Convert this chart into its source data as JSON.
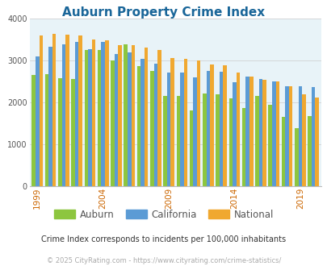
{
  "title": "Auburn Property Crime Index",
  "title_color": "#1a6699",
  "subtitle": "Crime Index corresponds to incidents per 100,000 inhabitants",
  "footer": "© 2025 CityRating.com - https://www.cityrating.com/crime-statistics/",
  "years": [
    1999,
    2000,
    2001,
    2002,
    2003,
    2004,
    2005,
    2006,
    2007,
    2008,
    2009,
    2010,
    2011,
    2012,
    2013,
    2014,
    2015,
    2016,
    2017,
    2018,
    2019,
    2020
  ],
  "auburn": [
    2650,
    2680,
    2580,
    2550,
    3250,
    3260,
    3000,
    3380,
    2860,
    2760,
    2150,
    2160,
    1800,
    2220,
    2190,
    2100,
    1870,
    2160,
    1950,
    1650,
    1380,
    1680
  ],
  "california": [
    3100,
    3320,
    3380,
    3450,
    3270,
    3440,
    3160,
    3190,
    3040,
    2930,
    2710,
    2720,
    2590,
    2750,
    2730,
    2490,
    2610,
    2560,
    2500,
    2390,
    2390,
    2370
  ],
  "national": [
    3600,
    3640,
    3620,
    3600,
    3510,
    3480,
    3370,
    3360,
    3310,
    3260,
    3060,
    3040,
    3010,
    2900,
    2880,
    2720,
    2620,
    2540,
    2510,
    2390,
    2200,
    2110
  ],
  "auburn_color": "#8dc63f",
  "california_color": "#5b9bd5",
  "national_color": "#f0a830",
  "plot_bg": "#e8f3f8",
  "ylim": [
    0,
    4000
  ],
  "yticks": [
    0,
    1000,
    2000,
    3000,
    4000
  ],
  "bar_width": 0.28,
  "grid_color": "#cccccc",
  "x_label_years": [
    1999,
    2004,
    2009,
    2014,
    2019
  ],
  "xtick_color": "#cc6600",
  "ytick_color": "#555555",
  "legend_text_color": "#555555",
  "subtitle_color": "#333333",
  "footer_color": "#aaaaaa"
}
